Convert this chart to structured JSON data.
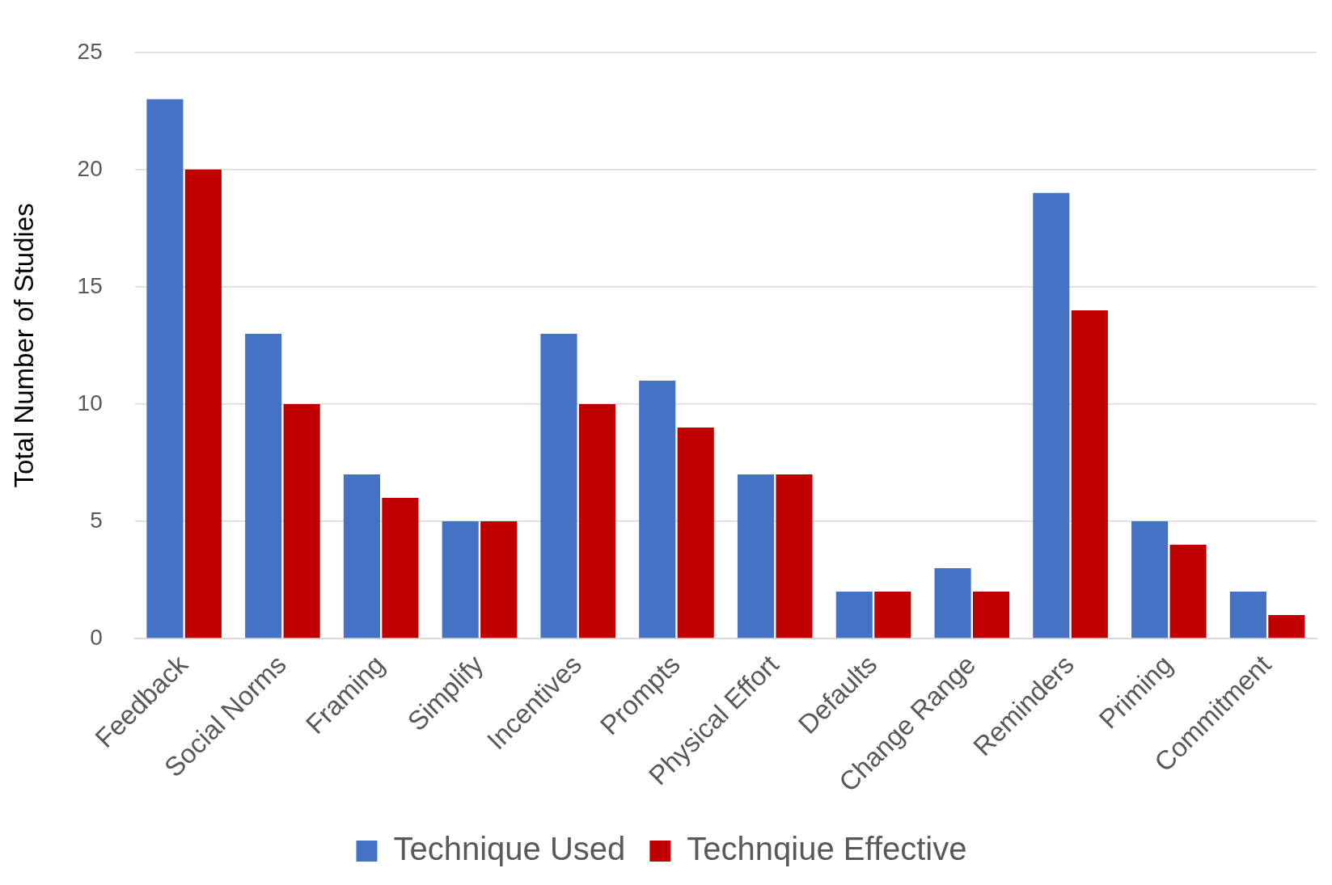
{
  "chart_data": {
    "type": "bar",
    "ylabel": "Total Number of Studies",
    "categories": [
      "Feedback",
      "Social Norms",
      "Framing",
      "Simplify",
      "Incentives",
      "Prompts",
      "Physical Effort",
      "Defaults",
      "Change Range",
      "Reminders",
      "Priming",
      "Commitment"
    ],
    "series": [
      {
        "name": "Technique Used",
        "color": "#4472c4",
        "values": [
          23,
          13,
          7,
          5,
          13,
          11,
          7,
          2,
          3,
          19,
          5,
          2
        ]
      },
      {
        "name": "Technqiue Effective",
        "color": "#c00000",
        "values": [
          20,
          10,
          6,
          5,
          10,
          9,
          7,
          2,
          2,
          14,
          4,
          1
        ]
      }
    ],
    "ylim": [
      0,
      25
    ],
    "yticks": [
      0,
      5,
      10,
      15,
      20,
      25
    ],
    "grid": "y",
    "legend": "bottom"
  }
}
